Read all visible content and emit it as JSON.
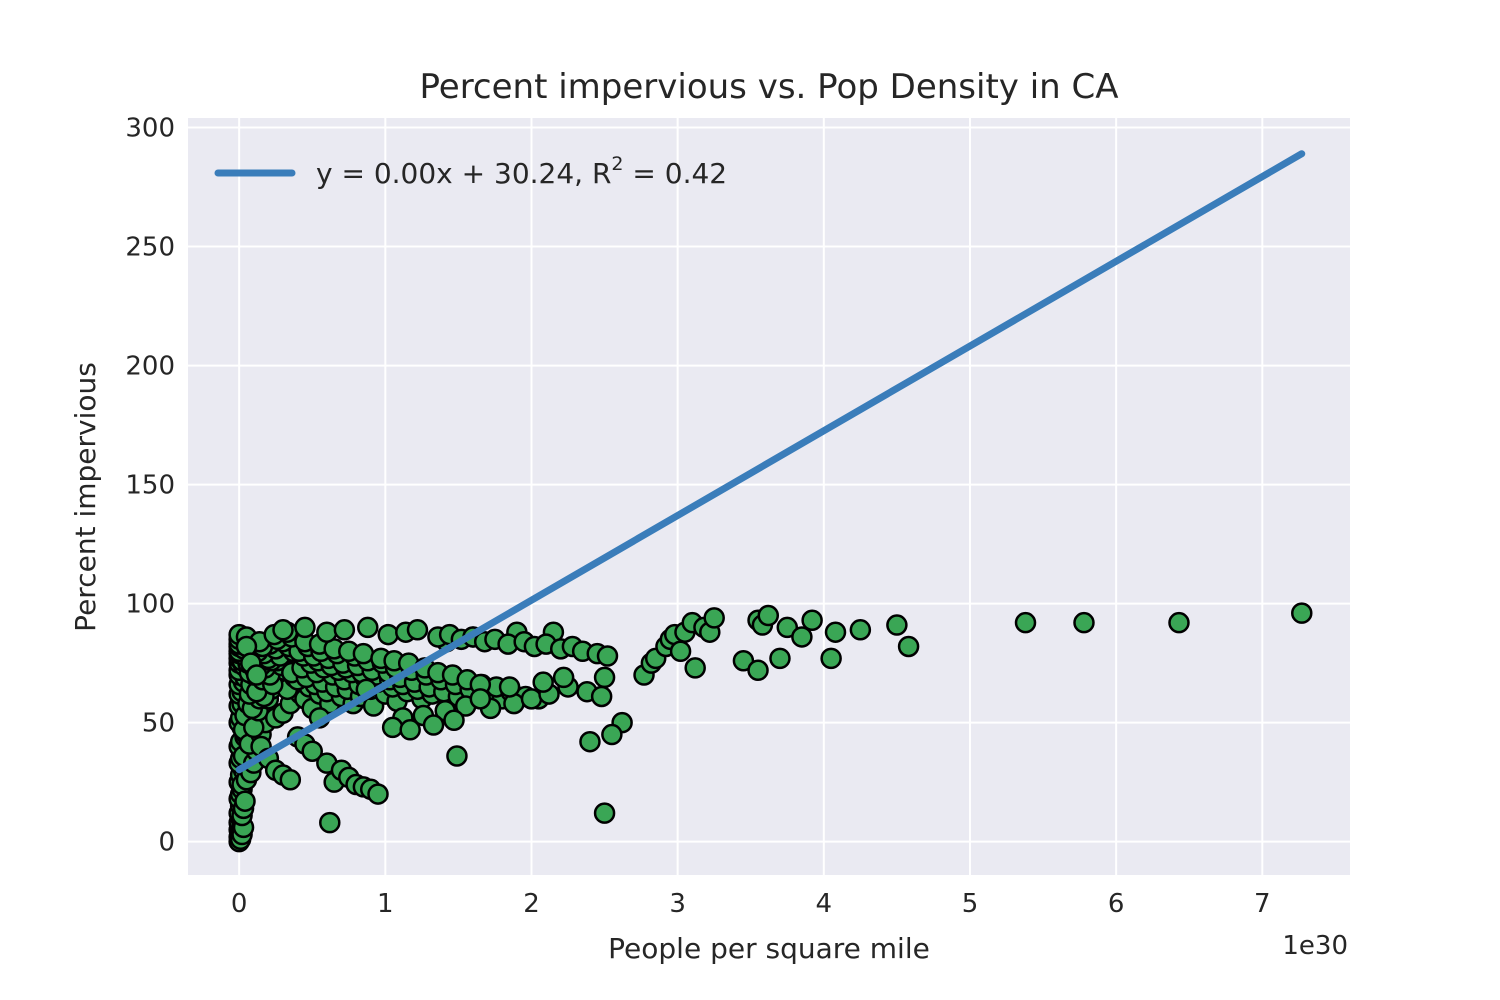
{
  "chart_data": {
    "type": "scatter",
    "title": "Percent impervious vs. Pop Density in CA",
    "xlabel": "People per square mile",
    "ylabel": "Percent impervious",
    "x_offset_label": "1e30",
    "xlim": [
      -0.35,
      7.6
    ],
    "ylim": [
      -14,
      304
    ],
    "x_ticks": [
      0,
      1,
      2,
      3,
      4,
      5,
      6,
      7
    ],
    "x_tick_labels": [
      "0",
      "1",
      "2",
      "3",
      "4",
      "5",
      "6",
      "7"
    ],
    "y_ticks": [
      0,
      50,
      100,
      150,
      200,
      250,
      300
    ],
    "y_tick_labels": [
      "0",
      "50",
      "100",
      "150",
      "200",
      "250",
      "300"
    ],
    "grid": true,
    "legend_placement": "top-left",
    "colors": {
      "background": "#eaeaf2",
      "grid": "#ffffff",
      "points": "#3aa655",
      "point_edge": "#000000",
      "fit_line": "#3a7dba"
    },
    "fit_line": {
      "legend_prefix": "y = 0.00x + 30.24, R",
      "legend_sup": "2",
      "legend_suffix": " = 0.42",
      "x": [
        0,
        7.27
      ],
      "y": [
        30.24,
        289.0
      ]
    },
    "series": [
      {
        "x": [
          0.0,
          0.0,
          0.0,
          0.01,
          0.01,
          0.02,
          0.0,
          0.01,
          0.02,
          0.03,
          0.0,
          0.01,
          0.02,
          0.0,
          0.01,
          0.03,
          0.02,
          0.0,
          0.01,
          0.02,
          0.04,
          0.03,
          0.0,
          0.01,
          0.05,
          0.02,
          0.0,
          0.06,
          0.01,
          0.03,
          0.04,
          0.08,
          0.1,
          0.05,
          0.12,
          0.02,
          0.0,
          0.01,
          0.03,
          0.05,
          0.07,
          0.15,
          0.18,
          0.0,
          0.02,
          0.04,
          0.1,
          0.13,
          0.2,
          0.25,
          0.0,
          0.02,
          0.06,
          0.09,
          0.14,
          0.22,
          0.3,
          0.0,
          0.03,
          0.07,
          0.11,
          0.17,
          0.24,
          0.35,
          0.42,
          0.0,
          0.04,
          0.08,
          0.12,
          0.19,
          0.27,
          0.33,
          0.45,
          0.5,
          0.0,
          0.05,
          0.1,
          0.16,
          0.23,
          0.31,
          0.38,
          0.48,
          0.55,
          0.62,
          0.0,
          0.03,
          0.07,
          0.14,
          0.21,
          0.29,
          0.4,
          0.52,
          0.6,
          0.7,
          0.78,
          0.0,
          0.02,
          0.06,
          0.11,
          0.18,
          0.26,
          0.36,
          0.46,
          0.57,
          0.66,
          0.74,
          0.83,
          0.92,
          0.0,
          0.04,
          0.09,
          0.15,
          0.22,
          0.32,
          0.43,
          0.53,
          0.64,
          0.72,
          0.82,
          0.9,
          1.0,
          1.08,
          0.0,
          0.05,
          0.12,
          0.2,
          0.28,
          0.37,
          0.49,
          0.58,
          0.68,
          0.77,
          0.86,
          0.95,
          1.05,
          1.15,
          1.25,
          0.0,
          0.03,
          0.1,
          0.17,
          0.25,
          0.34,
          0.44,
          0.54,
          0.63,
          0.73,
          0.84,
          0.94,
          1.03,
          1.12,
          1.22,
          1.32,
          1.42,
          0.0,
          0.06,
          0.13,
          0.21,
          0.3,
          0.41,
          0.51,
          0.61,
          0.71,
          0.81,
          0.91,
          1.02,
          1.1,
          1.2,
          1.3,
          1.4,
          1.5,
          1.6,
          0.0,
          0.08,
          0.16,
          0.26,
          0.36,
          0.47,
          0.56,
          0.67,
          0.79,
          0.88,
          0.98,
          1.07,
          1.18,
          1.28,
          1.38,
          1.48,
          1.58,
          1.7,
          1.8,
          1.9,
          0.0,
          0.05,
          0.14,
          0.24,
          0.33,
          0.45,
          0.55,
          0.65,
          0.75,
          0.85,
          0.97,
          1.06,
          1.16,
          1.27,
          1.36,
          1.46,
          1.56,
          1.66,
          1.76,
          1.86,
          1.96,
          2.05,
          2.15,
          0.3,
          0.45,
          0.6,
          0.72,
          0.88,
          1.02,
          1.14,
          1.22,
          1.36,
          1.44,
          1.52,
          1.6,
          1.68,
          1.75,
          1.84,
          1.95,
          2.02,
          2.1,
          2.2,
          2.28,
          2.35,
          2.45,
          2.52,
          2.62,
          1.12,
          1.26,
          1.41,
          1.55,
          1.72,
          1.88,
          2.0,
          2.12,
          2.25,
          2.38,
          2.48,
          2.55,
          1.05,
          1.33,
          1.47,
          1.65,
          2.08,
          2.22,
          2.4,
          1.17,
          1.49,
          1.85,
          2.5,
          0.62,
          0.87,
          1.65,
          2.5,
          2.77,
          2.82,
          2.85,
          2.92,
          2.95,
          2.98,
          3.02,
          3.05,
          3.1,
          3.12,
          3.18,
          3.22,
          3.25,
          3.45,
          3.55,
          3.58,
          3.62,
          3.75,
          3.85,
          3.92,
          3.55,
          3.7,
          4.05,
          4.08,
          4.25,
          4.5,
          4.58,
          5.38,
          5.78,
          6.43,
          7.27,
          0.05,
          0.08,
          0.12,
          0.15,
          0.2,
          0.25,
          0.3,
          0.35,
          0.4,
          0.45,
          0.5,
          0.55,
          0.6,
          0.65,
          0.7,
          0.75,
          0.8,
          0.85,
          0.9,
          0.95
        ],
        "y": [
          0,
          2,
          5,
          1,
          4,
          3,
          8,
          10,
          7,
          6,
          12,
          15,
          11,
          18,
          20,
          14,
          22,
          25,
          28,
          24,
          17,
          30,
          33,
          35,
          26,
          38,
          40,
          31,
          42,
          36,
          44,
          29,
          33,
          45,
          38,
          48,
          50,
          52,
          47,
          55,
          41,
          45,
          50,
          57,
          58,
          53,
          48,
          55,
          60,
          52,
          62,
          63,
          58,
          56,
          60,
          64,
          54,
          66,
          67,
          62,
          65,
          61,
          68,
          58,
          62,
          70,
          69,
          66,
          63,
          71,
          67,
          64,
          60,
          56,
          72,
          73,
          70,
          68,
          66,
          72,
          69,
          65,
          62,
          58,
          75,
          74,
          71,
          73,
          70,
          74,
          68,
          66,
          63,
          61,
          58,
          77,
          76,
          75,
          72,
          73,
          76,
          71,
          69,
          67,
          65,
          64,
          61,
          57,
          79,
          78,
          77,
          74,
          76,
          79,
          73,
          71,
          70,
          68,
          66,
          64,
          62,
          59,
          80,
          81,
          79,
          77,
          78,
          80,
          75,
          73,
          72,
          71,
          69,
          67,
          65,
          63,
          60,
          82,
          81,
          80,
          79,
          81,
          82,
          78,
          76,
          74,
          73,
          71,
          70,
          68,
          66,
          64,
          62,
          84,
          83,
          82,
          80,
          83,
          84,
          80,
          78,
          77,
          75,
          74,
          72,
          71,
          69,
          67,
          65,
          63,
          61,
          86,
          85,
          84,
          82,
          85,
          86,
          82,
          80,
          79,
          78,
          76,
          75,
          73,
          72,
          70,
          68,
          66,
          64,
          62,
          60,
          88,
          87,
          86,
          84,
          87,
          88,
          84,
          83,
          81,
          80,
          79,
          77,
          76,
          75,
          73,
          71,
          70,
          68,
          66,
          65,
          63,
          61,
          60,
          88,
          89,
          90,
          88,
          89,
          90,
          87,
          88,
          89,
          86,
          87,
          85,
          86,
          84,
          85,
          83,
          84,
          82,
          83,
          81,
          82,
          80,
          79,
          78,
          50,
          52,
          53,
          55,
          57,
          56,
          58,
          60,
          62,
          65,
          63,
          61,
          45,
          48,
          49,
          51,
          66,
          67,
          69,
          42,
          47,
          36,
          65,
          12,
          8,
          64,
          60,
          69,
          70,
          75,
          77,
          82,
          85,
          87,
          80,
          88,
          92,
          73,
          90,
          88,
          94,
          76,
          93,
          91,
          95,
          90,
          86,
          93,
          72,
          77,
          77,
          88,
          89,
          91,
          82,
          92,
          92,
          92,
          96,
          82,
          75,
          70,
          40,
          35,
          30,
          28,
          26,
          44,
          41,
          38,
          52,
          33,
          25,
          30,
          27,
          24,
          23,
          22,
          20
        ]
      }
    ]
  }
}
